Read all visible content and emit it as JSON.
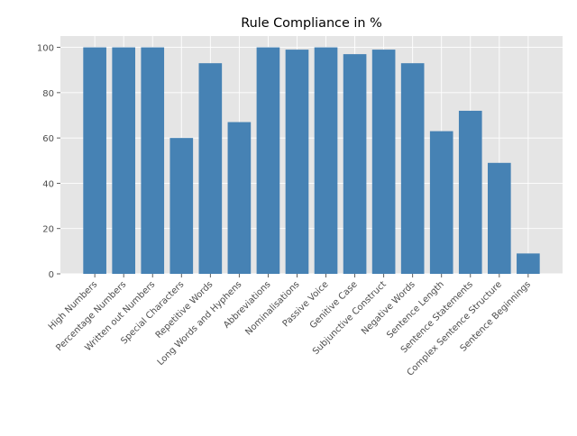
{
  "chart_data": {
    "type": "bar",
    "title": "Rule Compliance in %",
    "xlabel": "",
    "ylabel": "",
    "categories": [
      "High Numbers",
      "Percentage Numbers",
      "Written out Numbers",
      "Special Characters",
      "Repetitive Words",
      "Long Words and Hyphens",
      "Abbreviations",
      "Nominalisations",
      "Passive Voice",
      "Genitive Case",
      "Subjunctive Construct",
      "Negative Words",
      "Sentence Length",
      "Sentence Statements",
      "Complex Sentence Structure",
      "Sentence Beginnings"
    ],
    "values": [
      100,
      100,
      100,
      60,
      93,
      67,
      100,
      99,
      100,
      97,
      99,
      93,
      63,
      72,
      49,
      9
    ],
    "ylim": [
      0,
      105
    ],
    "yticks": [
      0,
      20,
      40,
      60,
      80,
      100
    ],
    "grid": true,
    "bar_color": "#4682b4",
    "background_color": "#e5e5e5",
    "grid_color": "#ffffff",
    "text_color": "#4d4d4d",
    "title_color": "#000000"
  }
}
